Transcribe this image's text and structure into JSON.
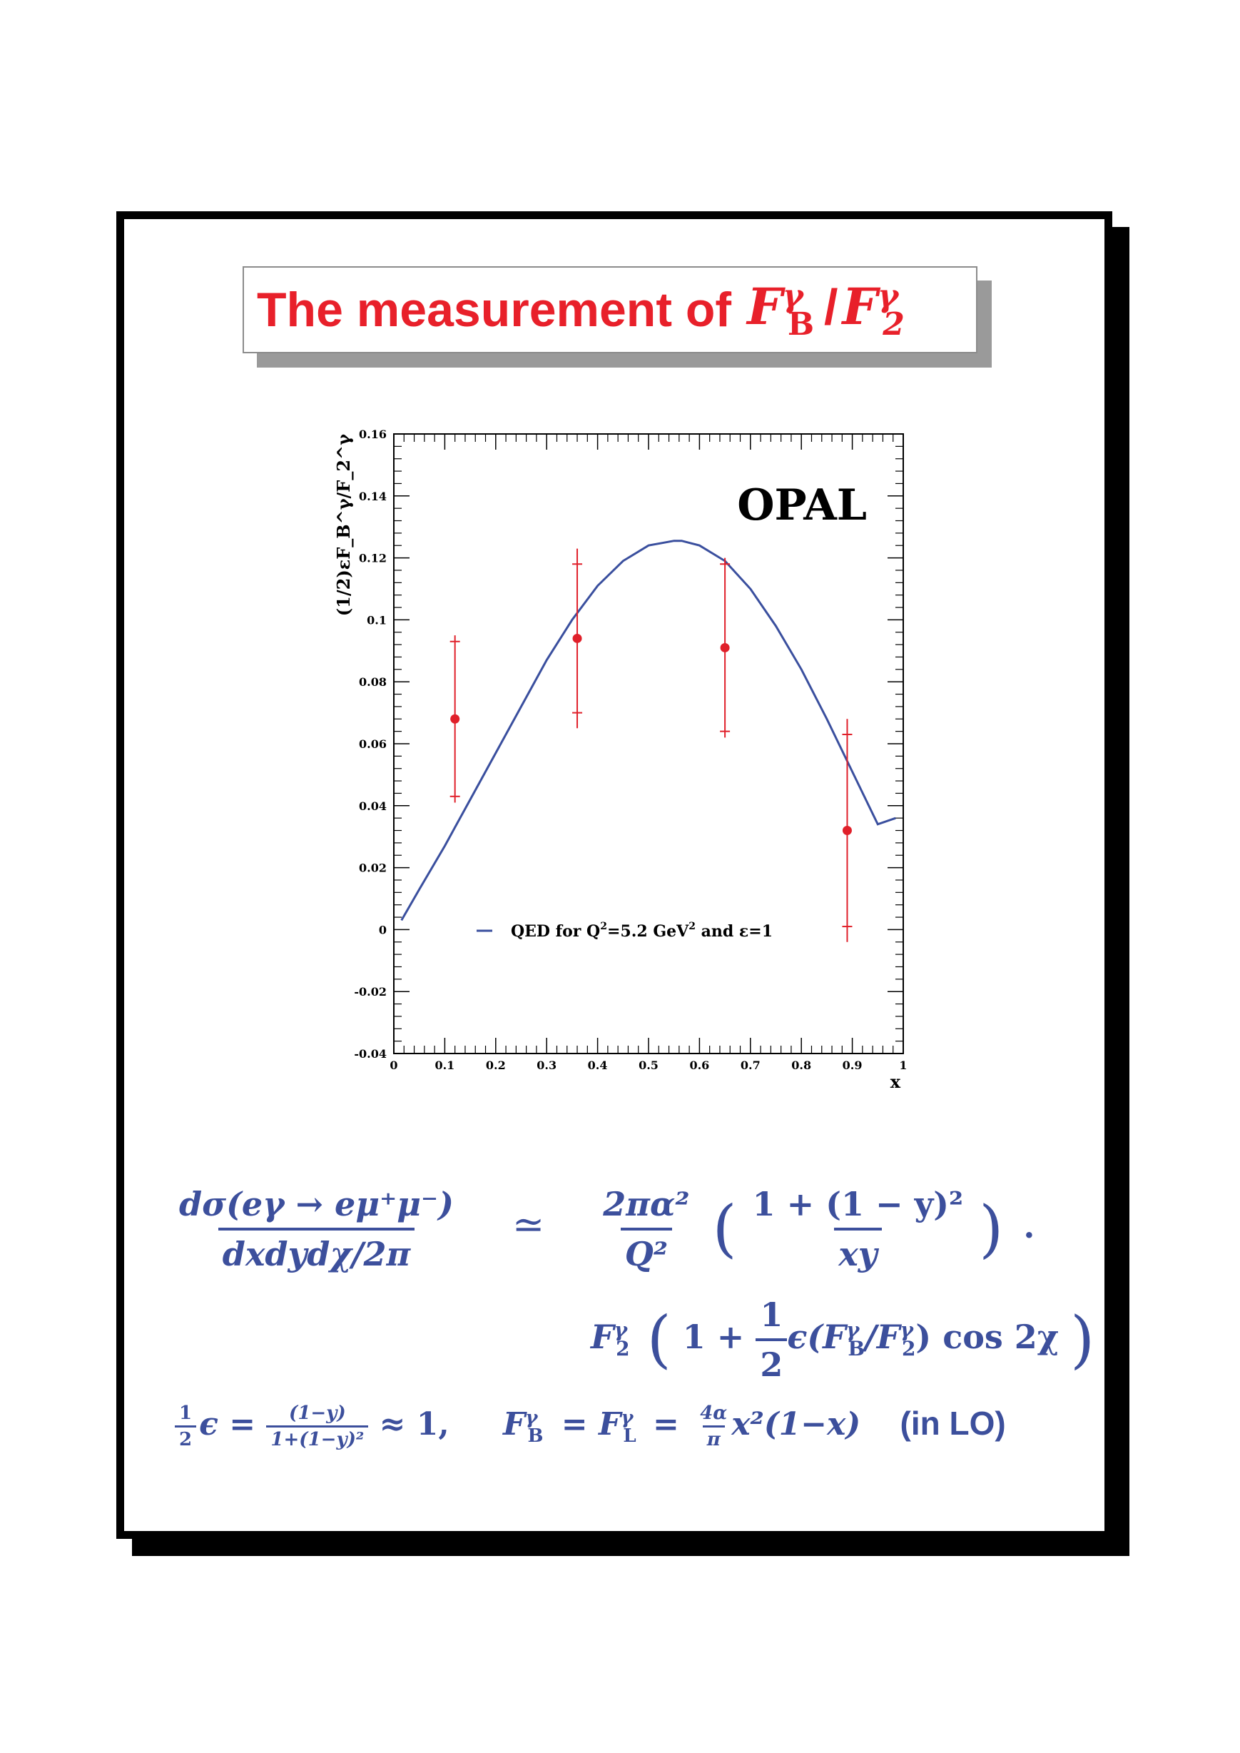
{
  "title": {
    "text": "The measurement of",
    "math": {
      "F": "F",
      "sup1": "γ",
      "sub1": "B",
      "slash": "/",
      "sup2": "γ",
      "sub2": "2"
    }
  },
  "chart_data": {
    "type": "scatter",
    "title": "",
    "annotation": "OPAL",
    "xlabel": "x",
    "ylabel": "(1/2)εF_B^γ/F_2^γ",
    "xlim": [
      0,
      1
    ],
    "ylim": [
      -0.04,
      0.16
    ],
    "x_ticks": [
      "0",
      "0.1",
      "0.2",
      "0.3",
      "0.4",
      "0.5",
      "0.6",
      "0.7",
      "0.8",
      "0.9",
      "1"
    ],
    "y_ticks": [
      "-0.04",
      "-0.02",
      "0",
      "0.02",
      "0.04",
      "0.06",
      "0.08",
      "0.1",
      "0.12",
      "0.14",
      "0.16"
    ],
    "grid": false,
    "legend": {
      "position": "bottom-center",
      "label_prefix": "QED for Q",
      "label_sup1": "2",
      "label_mid": "=5.2 GeV",
      "label_sup2": "2",
      "label_suffix": " and ε=1"
    },
    "series": [
      {
        "name": "OPAL data",
        "type": "scatter",
        "color": "#e0202a",
        "points": [
          {
            "x": 0.12,
            "y": 0.068,
            "stat_lo": 0.043,
            "stat_hi": 0.093,
            "tot_lo": 0.041,
            "tot_hi": 0.095
          },
          {
            "x": 0.36,
            "y": 0.094,
            "stat_lo": 0.07,
            "stat_hi": 0.118,
            "tot_lo": 0.065,
            "tot_hi": 0.123
          },
          {
            "x": 0.65,
            "y": 0.091,
            "stat_lo": 0.064,
            "stat_hi": 0.118,
            "tot_lo": 0.062,
            "tot_hi": 0.12
          },
          {
            "x": 0.89,
            "y": 0.032,
            "stat_lo": 0.001,
            "stat_hi": 0.063,
            "tot_lo": -0.004,
            "tot_hi": 0.068
          }
        ]
      },
      {
        "name": "QED for Q^2=5.2 GeV^2 and ε=1",
        "type": "line",
        "color": "#3a4f9e",
        "x": [
          0.015,
          0.05,
          0.1,
          0.15,
          0.2,
          0.25,
          0.3,
          0.35,
          0.4,
          0.45,
          0.5,
          0.55,
          0.565,
          0.6,
          0.65,
          0.7,
          0.75,
          0.8,
          0.85,
          0.9,
          0.95,
          0.985
        ],
        "y": [
          0.003,
          0.013,
          0.027,
          0.042,
          0.057,
          0.072,
          0.087,
          0.1,
          0.111,
          0.119,
          0.124,
          0.1255,
          0.1255,
          0.124,
          0.119,
          0.11,
          0.098,
          0.084,
          0.068,
          0.051,
          0.034,
          0.036
        ]
      }
    ]
  },
  "equations": {
    "eq1_num": "dσ(eγ → eμ⁺μ⁻)",
    "eq1_den": "dxdydχ/2π",
    "approx": "≃",
    "eq1_rhs_num": "2πα²",
    "eq1_rhs_den": "Q²",
    "eq1_paren_num": "1 + (1 − y)²",
    "eq1_paren_den": "xy",
    "period": ".",
    "eq2_F2": "F",
    "eq2_F2_sup": "γ",
    "eq2_F2_sub": "2",
    "eq2_one_plus": "1 +",
    "eq2_half_num": "1",
    "eq2_half_den": "2",
    "eq2_rest": "ϵ(F",
    "eq2_rest_sup1": "γ",
    "eq2_rest_sub1": "B",
    "eq2_rest_mid": "/F",
    "eq2_rest_sup2": "γ",
    "eq2_rest_sub2": "2",
    "eq2_cos": ") cos 2χ",
    "eq3_half_num": "1",
    "eq3_half_den": "2",
    "eq3_eps": "ϵ =",
    "eq3_frac_num": "(1−y)",
    "eq3_frac_den": "1+(1−y)²",
    "eq3_approx": "≈ 1,",
    "eq3_FB": "F",
    "eq3_FB_sup": "γ",
    "eq3_FB_sub": "B",
    "eq3_eq1": "= F",
    "eq3_FL_sup": "γ",
    "eq3_FL_sub": "L",
    "eq3_eq2": "=",
    "eq3_4a_num": "4α",
    "eq3_4a_den": "π",
    "eq3_tail": "x²(1−x)",
    "eq3_inlo": "(in LO)"
  }
}
